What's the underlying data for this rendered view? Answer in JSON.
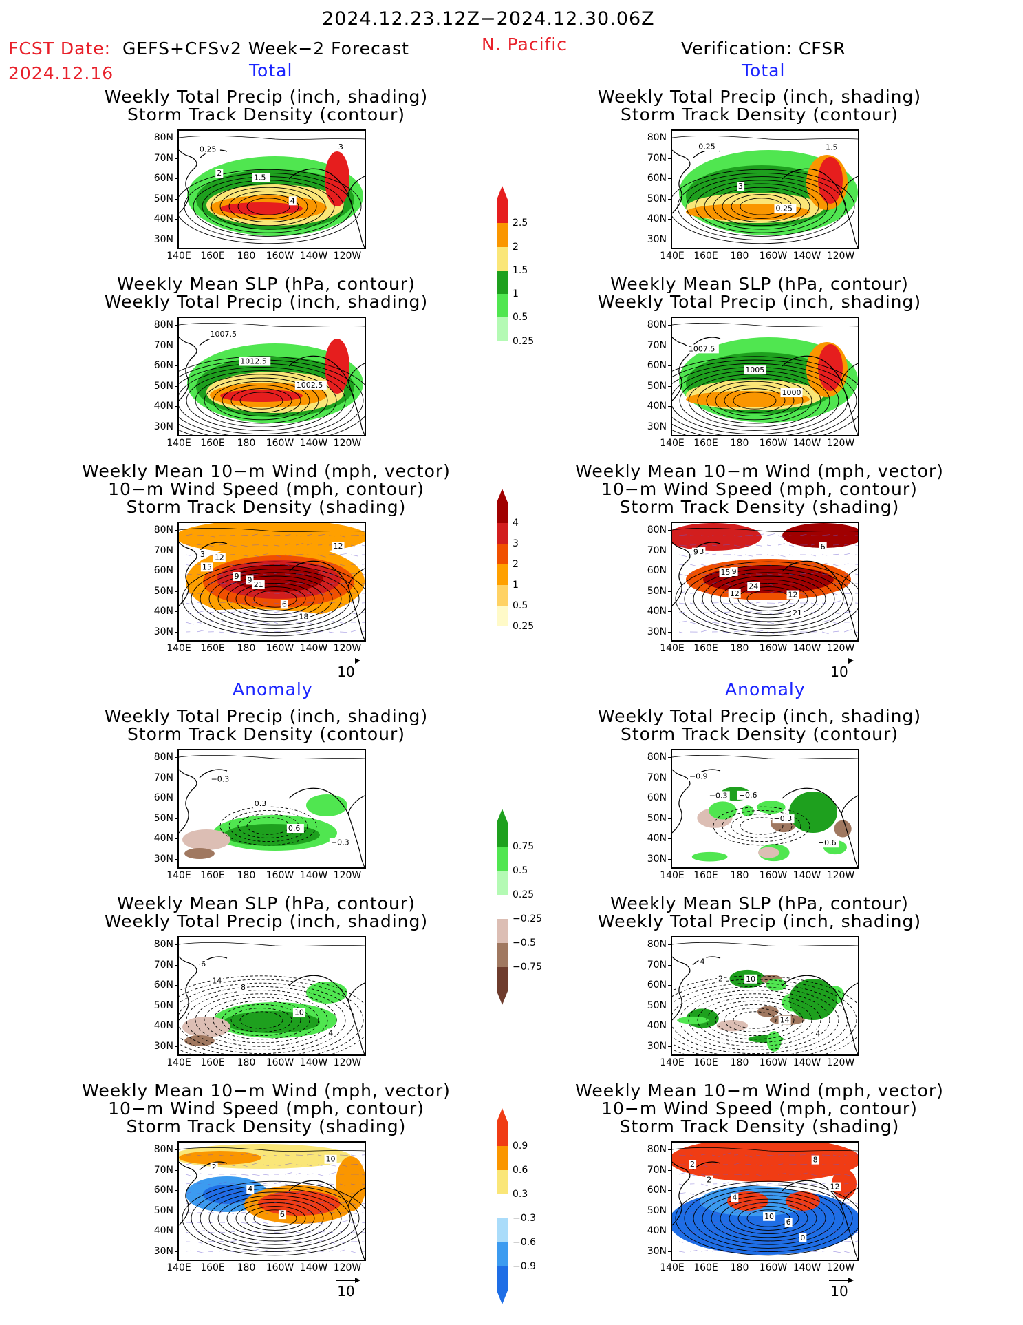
{
  "header": {
    "date_range": "2024.12.23.12Z−2024.12.30.06Z",
    "fcst_prefix": "FCST Date:",
    "model": "GEFS+CFSv2 Week−2 Forecast",
    "fcst_date": "2024.12.16",
    "region": "N. Pacific",
    "verification": "Verification: CFSR"
  },
  "section_labels": {
    "total": "Total",
    "anomaly": "Anomaly"
  },
  "panel_titles": {
    "precip_storm": [
      "Weekly Total Precip (inch, shading)",
      "Storm Track Density (contour)"
    ],
    "slp_precip": [
      "Weekly Mean SLP (hPa, contour)",
      "Weekly Total Precip (inch, shading)"
    ],
    "wind_storm": [
      "Weekly Mean 10−m Wind (mph, vector)",
      "10−m Wind Speed (mph, contour)",
      "Storm Track Density (shading)"
    ]
  },
  "axes": {
    "lat_ticks": [
      "80N",
      "70N",
      "60N",
      "50N",
      "40N",
      "30N"
    ],
    "lon_ticks": [
      "140E",
      "160E",
      "180",
      "160W",
      "140W",
      "120W"
    ]
  },
  "vector_ref": "10",
  "contour_labels": {
    "f_total_precip": [
      "0.25",
      "1.5",
      "4",
      "3",
      "2"
    ],
    "v_total_precip": [
      "0.25",
      "3",
      "0.25",
      "1.5"
    ],
    "f_total_slp": [
      "1007.5",
      "1012.5",
      "1002.5"
    ],
    "v_total_slp": [
      "1007.5",
      "1005",
      "1000"
    ],
    "f_total_wind": [
      "3",
      "9",
      "6",
      "12",
      "12",
      "21",
      "18",
      "15",
      "9"
    ],
    "v_total_wind": [
      "3",
      "9",
      "12",
      "6",
      "15",
      "24",
      "21",
      "9",
      "12"
    ],
    "f_anom_precip": [
      "−0.3",
      "0.3",
      "0.6",
      "−0.3"
    ],
    "v_anom_precip": [
      "−0.9",
      "−0.6",
      "−0.3",
      "−0.6",
      "−0.3"
    ],
    "f_anom_slp": [
      "6",
      "8",
      "10",
      "4",
      "14"
    ],
    "v_anom_slp": [
      "4",
      "10",
      "14",
      "4",
      "2"
    ],
    "f_anom_wind": [
      "2",
      "4",
      "6",
      "10"
    ],
    "v_anom_wind": [
      "2",
      "4",
      "6",
      "8",
      "2",
      "10",
      "0",
      "12"
    ]
  },
  "colors": {
    "precip_total": [
      "#b4fab4",
      "#50e650",
      "#1ea01e",
      "#fae678",
      "#fa9600",
      "#e61e1e"
    ],
    "storm_total": [
      "#fffac8",
      "#ffd264",
      "#ffa000",
      "#f05000",
      "#d21e1e",
      "#a00000"
    ],
    "precip_anom": [
      "#6e3c2d",
      "#a07860",
      "#dcbeb4",
      "#ffffff",
      "#b4fab4",
      "#50e650",
      "#1ea01e"
    ],
    "storm_anom": [
      "#1e6ee6",
      "#3c9bf0",
      "#aadcfa",
      "#ffffff",
      "#fae678",
      "#fa9600",
      "#f03c14"
    ]
  },
  "chart_data": [
    {
      "type": "heatmap",
      "name": "Forecast Total: Weekly Total Precip / Storm Track Density",
      "colorbar": {
        "levels": [
          0.25,
          0.5,
          1,
          1.5,
          2,
          2.5
        ],
        "labels": [
          "0.25",
          "0.5",
          "1",
          "1.5",
          "2",
          "2.5"
        ]
      },
      "lat_range": [
        25,
        85
      ],
      "lon_range": [
        "140E",
        "120W"
      ]
    },
    {
      "type": "heatmap",
      "name": "Forecast Total: Weekly Mean SLP / Weekly Total Precip",
      "colorbar": {
        "levels": [
          0.25,
          0.5,
          1,
          1.5,
          2,
          2.5
        ],
        "labels": [
          "0.25",
          "0.5",
          "1",
          "1.5",
          "2",
          "2.5"
        ]
      }
    },
    {
      "type": "heatmap",
      "name": "Forecast Total: 10-m Wind / Storm Track Density",
      "colorbar": {
        "levels": [
          0.25,
          0.5,
          1,
          2,
          3,
          4
        ],
        "labels": [
          "0.25",
          "0.5",
          "1",
          "2",
          "3",
          "4"
        ]
      }
    },
    {
      "type": "heatmap",
      "name": "Forecast Anomaly: Weekly Total Precip / Storm Track Density",
      "colorbar": {
        "levels": [
          -0.75,
          -0.5,
          -0.25,
          0.25,
          0.5,
          0.75
        ],
        "labels": [
          "−0.75",
          "−0.5",
          "−0.25",
          "0.25",
          "0.5",
          "0.75"
        ]
      }
    },
    {
      "type": "heatmap",
      "name": "Forecast Anomaly: Weekly Mean SLP / Weekly Total Precip",
      "colorbar": {
        "levels": [
          -0.75,
          -0.5,
          -0.25,
          0.25,
          0.5,
          0.75
        ],
        "labels": [
          "−0.75",
          "−0.5",
          "−0.25",
          "0.25",
          "0.5",
          "0.75"
        ]
      }
    },
    {
      "type": "heatmap",
      "name": "Forecast Anomaly: 10-m Wind / Storm Track Density",
      "colorbar": {
        "levels": [
          -0.9,
          -0.6,
          -0.3,
          0.3,
          0.6,
          0.9
        ],
        "labels": [
          "−0.9",
          "−0.6",
          "−0.3",
          "0.3",
          "0.6",
          "0.9"
        ]
      }
    }
  ]
}
